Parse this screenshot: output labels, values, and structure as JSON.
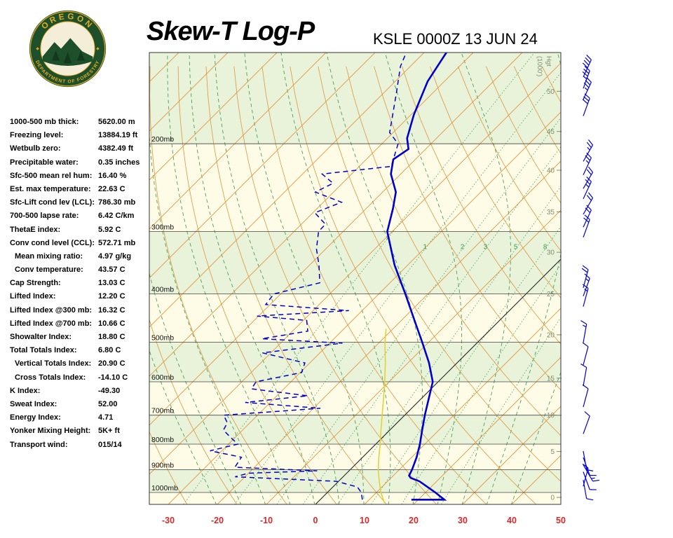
{
  "header": {
    "title": "Skew-T Log-P",
    "station": "KSLE 0000Z 13 JUN 24"
  },
  "logo": {
    "top_text": "OREGON",
    "bottom_text": "DEPARTMENT OF FORESTRY",
    "ring_color": "#1d4f2a",
    "text_color": "#e3ac1f"
  },
  "indices": [
    {
      "label": "1000-500 mb thick:",
      "value": "5620.00 m",
      "indent": false
    },
    {
      "label": "Freezing level:",
      "value": "13884.19 ft",
      "indent": false
    },
    {
      "label": "Wetbulb zero:",
      "value": "4382.49 ft",
      "indent": false
    },
    {
      "label": "Precipitable water:",
      "value": "0.35 inches",
      "indent": false
    },
    {
      "label": "Sfc-500 mean rel hum:",
      "value": "16.40 %",
      "indent": false
    },
    {
      "label": "Est. max temperature:",
      "value": "22.63 C",
      "indent": false
    },
    {
      "label": "Sfc-Lift cond lev (LCL):",
      "value": "786.30 mb",
      "indent": false
    },
    {
      "label": "700-500 lapse rate:",
      "value": "6.42 C/km",
      "indent": false
    },
    {
      "label": "ThetaE index:",
      "value": "5.92 C",
      "indent": false
    },
    {
      "label": "Conv cond level (CCL):",
      "value": "572.71 mb",
      "indent": false
    },
    {
      "label": "Mean mixing ratio:",
      "value": "4.97 g/kg",
      "indent": true
    },
    {
      "label": "Conv temperature:",
      "value": "43.57 C",
      "indent": true
    },
    {
      "label": "Cap Strength:",
      "value": "13.03 C",
      "indent": false
    },
    {
      "label": "Lifted Index:",
      "value": "12.20 C",
      "indent": false
    },
    {
      "label": "Lifted Index @300 mb:",
      "value": "16.32 C",
      "indent": false
    },
    {
      "label": "Lifted Index @700 mb:",
      "value": "10.66 C",
      "indent": false
    },
    {
      "label": "Showalter Index:",
      "value": "18.80 C",
      "indent": false
    },
    {
      "label": "Total Totals Index:",
      "value": "6.80 C",
      "indent": false
    },
    {
      "label": "Vertical Totals Index:",
      "value": "20.90 C",
      "indent": true
    },
    {
      "label": "Cross Totals Index:",
      "value": "-14.10 C",
      "indent": true
    },
    {
      "label": "K Index:",
      "value": "-49.30",
      "indent": false
    },
    {
      "label": "Sweat Index:",
      "value": "52.00",
      "indent": false
    },
    {
      "label": "Energy Index:",
      "value": "4.71",
      "indent": false
    },
    {
      "label": "Yonker Mixing Height:",
      "value": "5K+ ft",
      "indent": false
    },
    {
      "label": "Transport wind:",
      "value": "015/14",
      "indent": false
    }
  ],
  "chart_data": {
    "type": "skewt",
    "pressure_ticks": [
      {
        "p": 200,
        "label": "200mb"
      },
      {
        "p": 300,
        "label": "300mb"
      },
      {
        "p": 400,
        "label": "400mb"
      },
      {
        "p": 500,
        "label": "500mb"
      },
      {
        "p": 600,
        "label": "600mb"
      },
      {
        "p": 700,
        "label": "700mb"
      },
      {
        "p": 800,
        "label": "800mb"
      },
      {
        "p": 900,
        "label": "900mb"
      },
      {
        "p": 1000,
        "label": "1000mb"
      }
    ],
    "temp_ticks": [
      -30,
      -20,
      -10,
      0,
      10,
      20,
      30,
      40,
      50
    ],
    "height_axis_label": [
      "Hgt",
      "(1000')"
    ],
    "height_ticks": [
      {
        "label": "0",
        "p": 1023
      },
      {
        "label": "5",
        "p": 828
      },
      {
        "label": "10",
        "p": 700
      },
      {
        "label": "15",
        "p": 590
      },
      {
        "label": "20",
        "p": 483
      },
      {
        "label": "25",
        "p": 400
      },
      {
        "label": "30",
        "p": 330
      },
      {
        "label": "35",
        "p": 274
      },
      {
        "label": "40",
        "p": 226
      },
      {
        "label": "45",
        "p": 189
      },
      {
        "label": "50",
        "p": 157
      }
    ],
    "mixing_ratio_lines": [
      0.4,
      1,
      2,
      3,
      5,
      8,
      12,
      20
    ],
    "mixing_ratio_labels": [
      1,
      2,
      3,
      5,
      8
    ],
    "temperature_profile": [
      [
        1034,
        18.6
      ],
      [
        1034,
        25.3
      ],
      [
        1000,
        22.0
      ],
      [
        950,
        16.5
      ],
      [
        935,
        14.0
      ],
      [
        925,
        13.2
      ],
      [
        900,
        12.6
      ],
      [
        850,
        11.0
      ],
      [
        800,
        9.0
      ],
      [
        750,
        6.6
      ],
      [
        700,
        4.1
      ],
      [
        650,
        1.6
      ],
      [
        600,
        -1.1
      ],
      [
        550,
        -5.7
      ],
      [
        500,
        -11.3
      ],
      [
        450,
        -17.6
      ],
      [
        400,
        -24.6
      ],
      [
        350,
        -32.7
      ],
      [
        300,
        -41.0
      ],
      [
        270,
        -44.5
      ],
      [
        250,
        -47.3
      ],
      [
        230,
        -52.0
      ],
      [
        215,
        -54.5
      ],
      [
        205,
        -53.5
      ],
      [
        195,
        -56.0
      ],
      [
        175,
        -59.4
      ],
      [
        150,
        -63.4
      ],
      [
        131,
        -65.5
      ]
    ],
    "dewpoint_profile": [
      [
        1034,
        8.6
      ],
      [
        1000,
        6.9
      ],
      [
        975,
        5.0
      ],
      [
        950,
        -0.4
      ],
      [
        930,
        -22.0
      ],
      [
        915,
        -20.0
      ],
      [
        905,
        -6.5
      ],
      [
        890,
        -24.0
      ],
      [
        850,
        -24.7
      ],
      [
        825,
        -32.4
      ],
      [
        800,
        -28.1
      ],
      [
        775,
        -31.0
      ],
      [
        750,
        -33.9
      ],
      [
        725,
        -34.6
      ],
      [
        700,
        -36.9
      ],
      [
        678,
        -18.6
      ],
      [
        660,
        -35.1
      ],
      [
        640,
        -23.7
      ],
      [
        620,
        -36.6
      ],
      [
        600,
        -37.1
      ],
      [
        575,
        -29.7
      ],
      [
        550,
        -31.0
      ],
      [
        525,
        -41.7
      ],
      [
        502,
        -27.4
      ],
      [
        492,
        -44.7
      ],
      [
        475,
        -36.9
      ],
      [
        452,
        -39.3
      ],
      [
        443,
        -50.3
      ],
      [
        432,
        -32.7
      ],
      [
        420,
        -50.9
      ],
      [
        400,
        -51.4
      ],
      [
        380,
        -44.3
      ],
      [
        350,
        -48.1
      ],
      [
        325,
        -51.9
      ],
      [
        300,
        -55.0
      ],
      [
        290,
        -55.1
      ],
      [
        275,
        -59.6
      ],
      [
        262,
        -56.3
      ],
      [
        250,
        -63.7
      ],
      [
        240,
        -61.9
      ],
      [
        230,
        -66.0
      ],
      [
        222,
        -53.5
      ],
      [
        200,
        -56.7
      ],
      [
        190,
        -60.7
      ],
      [
        160,
        -67.0
      ],
      [
        140,
        -72.0
      ],
      [
        132,
        -73.5
      ]
    ],
    "parcel_profile": [
      [
        1050,
        13.8
      ],
      [
        1000,
        10.9
      ],
      [
        950,
        8.3
      ],
      [
        900,
        5.7
      ],
      [
        850,
        3.3
      ],
      [
        800,
        0.9
      ],
      [
        750,
        -1.8
      ],
      [
        700,
        -4.6
      ],
      [
        650,
        -7.6
      ],
      [
        600,
        -10.9
      ],
      [
        550,
        -14.6
      ],
      [
        500,
        -18.9
      ],
      [
        470,
        -21.4
      ]
    ],
    "wind_barbs": [
      [
        147,
        25,
        40
      ],
      [
        155,
        20,
        35
      ],
      [
        163,
        25,
        35
      ],
      [
        176,
        20,
        30
      ],
      [
        217,
        30,
        25
      ],
      [
        231,
        25,
        25
      ],
      [
        246,
        30,
        20
      ],
      [
        258,
        25,
        25
      ],
      [
        277,
        30,
        20
      ],
      [
        294,
        25,
        20
      ],
      [
        308,
        20,
        20
      ],
      [
        389,
        15,
        20
      ],
      [
        404,
        20,
        15
      ],
      [
        424,
        15,
        15
      ],
      [
        501,
        10,
        15
      ],
      [
        555,
        15,
        10
      ],
      [
        612,
        10,
        10
      ],
      [
        674,
        15,
        10
      ],
      [
        763,
        20,
        10
      ],
      [
        826,
        170,
        10
      ],
      [
        851,
        160,
        10
      ],
      [
        880,
        150,
        15
      ],
      [
        909,
        160,
        10
      ],
      [
        944,
        170,
        10
      ],
      [
        972,
        15,
        14
      ]
    ],
    "colors": {
      "band_green": "#E8F3DA",
      "band_cream": "#FEFCE6",
      "isotherm": "#E2953F",
      "zero_isotherm": "#222222",
      "dry_adiabat": "#DDA050",
      "moist_adiabat": "#4C9F5C",
      "mixing": "#3FA05A",
      "grid": "#444444",
      "pressure_label": "#111111",
      "height_axis": "#7E8F70",
      "temp_axis": "#D42A2A",
      "profile": "#0000CC",
      "parcel": "#E3D23A",
      "wind": "#0000CC"
    }
  }
}
